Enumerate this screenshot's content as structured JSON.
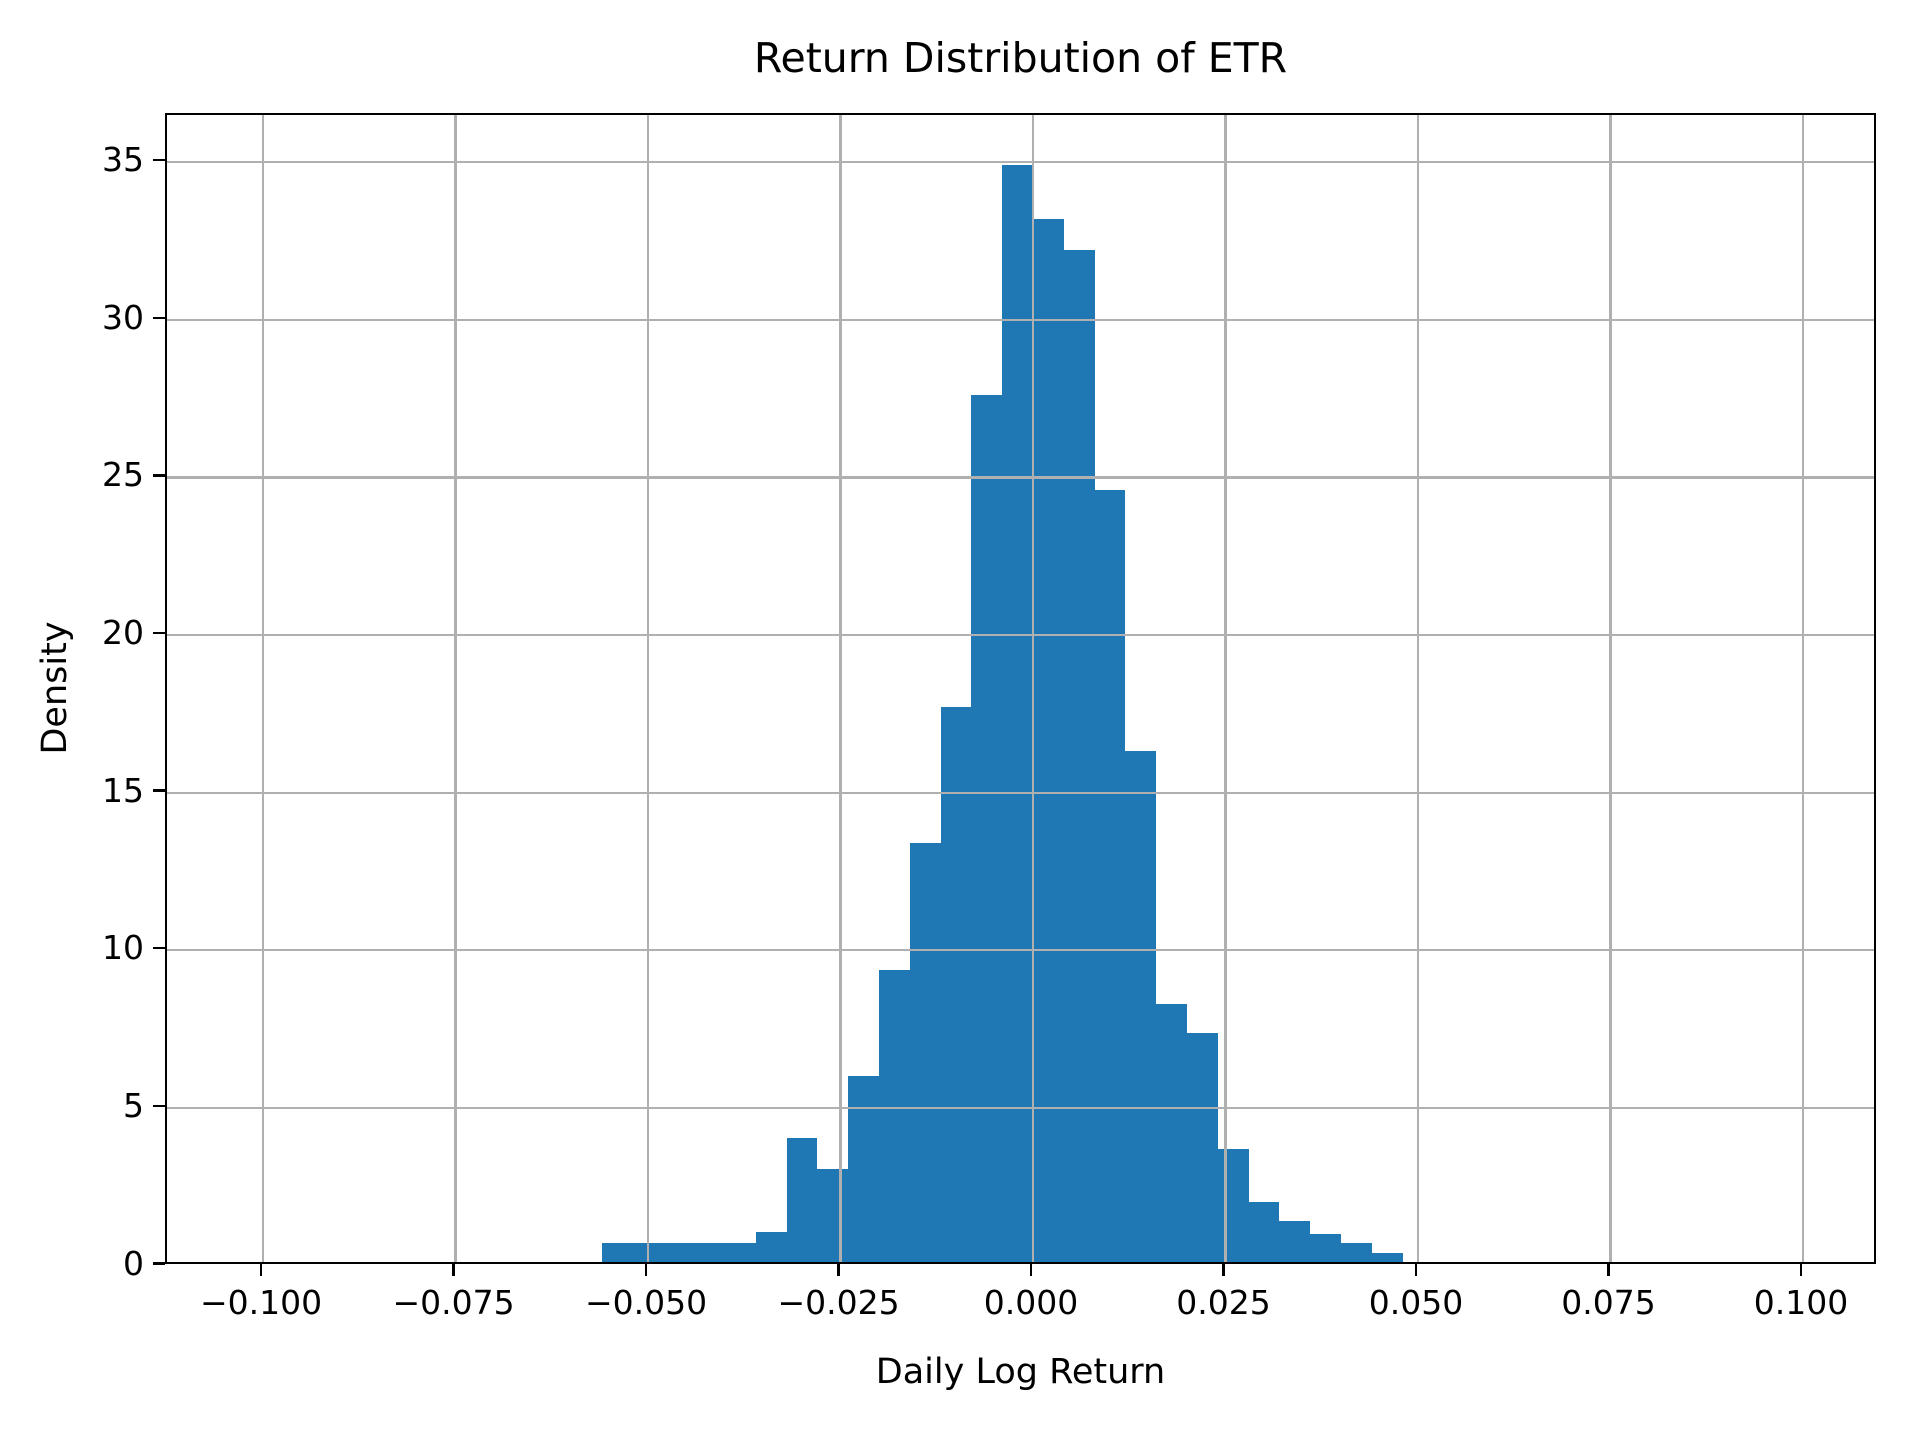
{
  "title": "Return Distribution of ETR",
  "xlabel": "Daily Log Return",
  "ylabel": "Density",
  "colors": {
    "bar": "#1f77b4",
    "grid": "#b0b0b0",
    "spine": "#000000",
    "background": "#ffffff"
  },
  "chart_data": {
    "type": "bar",
    "subtype": "histogram",
    "title": "Return Distribution of ETR",
    "xlabel": "Daily Log Return",
    "ylabel": "Density",
    "grid": true,
    "grid_above_bars": true,
    "legend": null,
    "xlim": [
      -0.11247,
      0.10974
    ],
    "ylim": [
      0,
      36.5
    ],
    "bin_width": 0.004,
    "bin_edges": [
      -0.056,
      -0.052,
      -0.048,
      -0.044,
      -0.04,
      -0.036,
      -0.032,
      -0.028,
      -0.024,
      -0.02,
      -0.016,
      -0.012,
      -0.008,
      -0.004,
      0.0,
      0.004,
      0.008,
      0.012,
      0.016,
      0.02,
      0.024,
      0.028,
      0.032,
      0.036,
      0.04,
      0.044,
      0.048
    ],
    "values": [
      0.6,
      0.6,
      0.6,
      0.6,
      0.6,
      0.95,
      3.95,
      2.95,
      5.9,
      9.25,
      13.3,
      17.6,
      27.5,
      34.8,
      33.1,
      32.1,
      24.5,
      16.2,
      8.2,
      7.25,
      3.6,
      1.9,
      1.3,
      0.9,
      0.6,
      0.3
    ],
    "x_ticks": [
      -0.1,
      -0.075,
      -0.05,
      -0.025,
      0.0,
      0.025,
      0.05,
      0.075,
      0.1
    ],
    "x_tick_labels": [
      "−0.100",
      "−0.075",
      "−0.050",
      "−0.025",
      "0.000",
      "0.025",
      "0.050",
      "0.075",
      "0.100"
    ],
    "y_ticks": [
      0,
      5,
      10,
      15,
      20,
      25,
      30,
      35
    ],
    "y_tick_labels": [
      "0",
      "5",
      "10",
      "15",
      "20",
      "25",
      "30",
      "35"
    ]
  }
}
